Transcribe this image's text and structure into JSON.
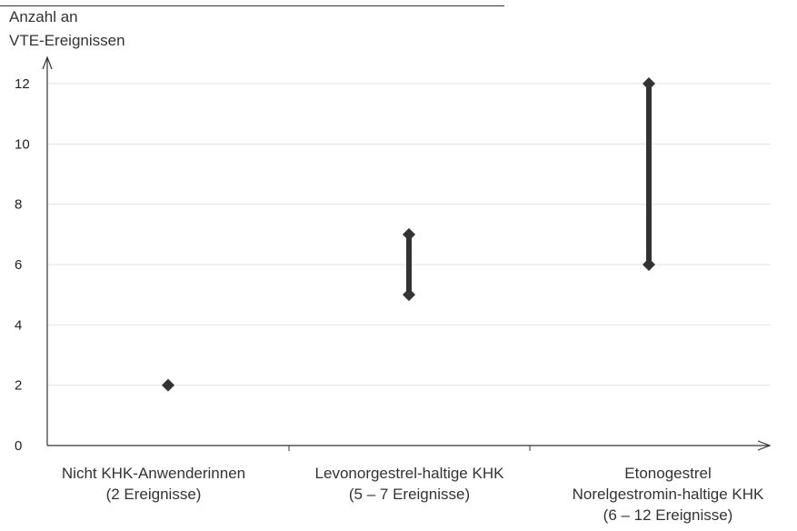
{
  "chart_data": {
    "type": "range",
    "title": "",
    "ylabel": [
      "Anzahl an",
      "VTE-Ereignissen"
    ],
    "ylim": [
      0,
      12.6
    ],
    "yticks": [
      0,
      2,
      4,
      6,
      8,
      10,
      12
    ],
    "categories": [
      [
        "Nicht KHK-Anwenderinnen",
        "(2 Ereignisse)"
      ],
      [
        "Levonorgestrel-haltige KHK",
        "(5 – 7 Ereignisse)"
      ],
      [
        "Etonogestrel",
        "Norelgestromin-haltige KHK",
        "(6 – 12 Ereignisse)"
      ]
    ],
    "ranges": [
      {
        "low": 2,
        "high": 2
      },
      {
        "low": 5,
        "high": 7
      },
      {
        "low": 6,
        "high": 12
      }
    ],
    "grid": true,
    "colors": {
      "marker": "#333333",
      "grid": "#e3e3e3",
      "axis": "#333333"
    }
  }
}
